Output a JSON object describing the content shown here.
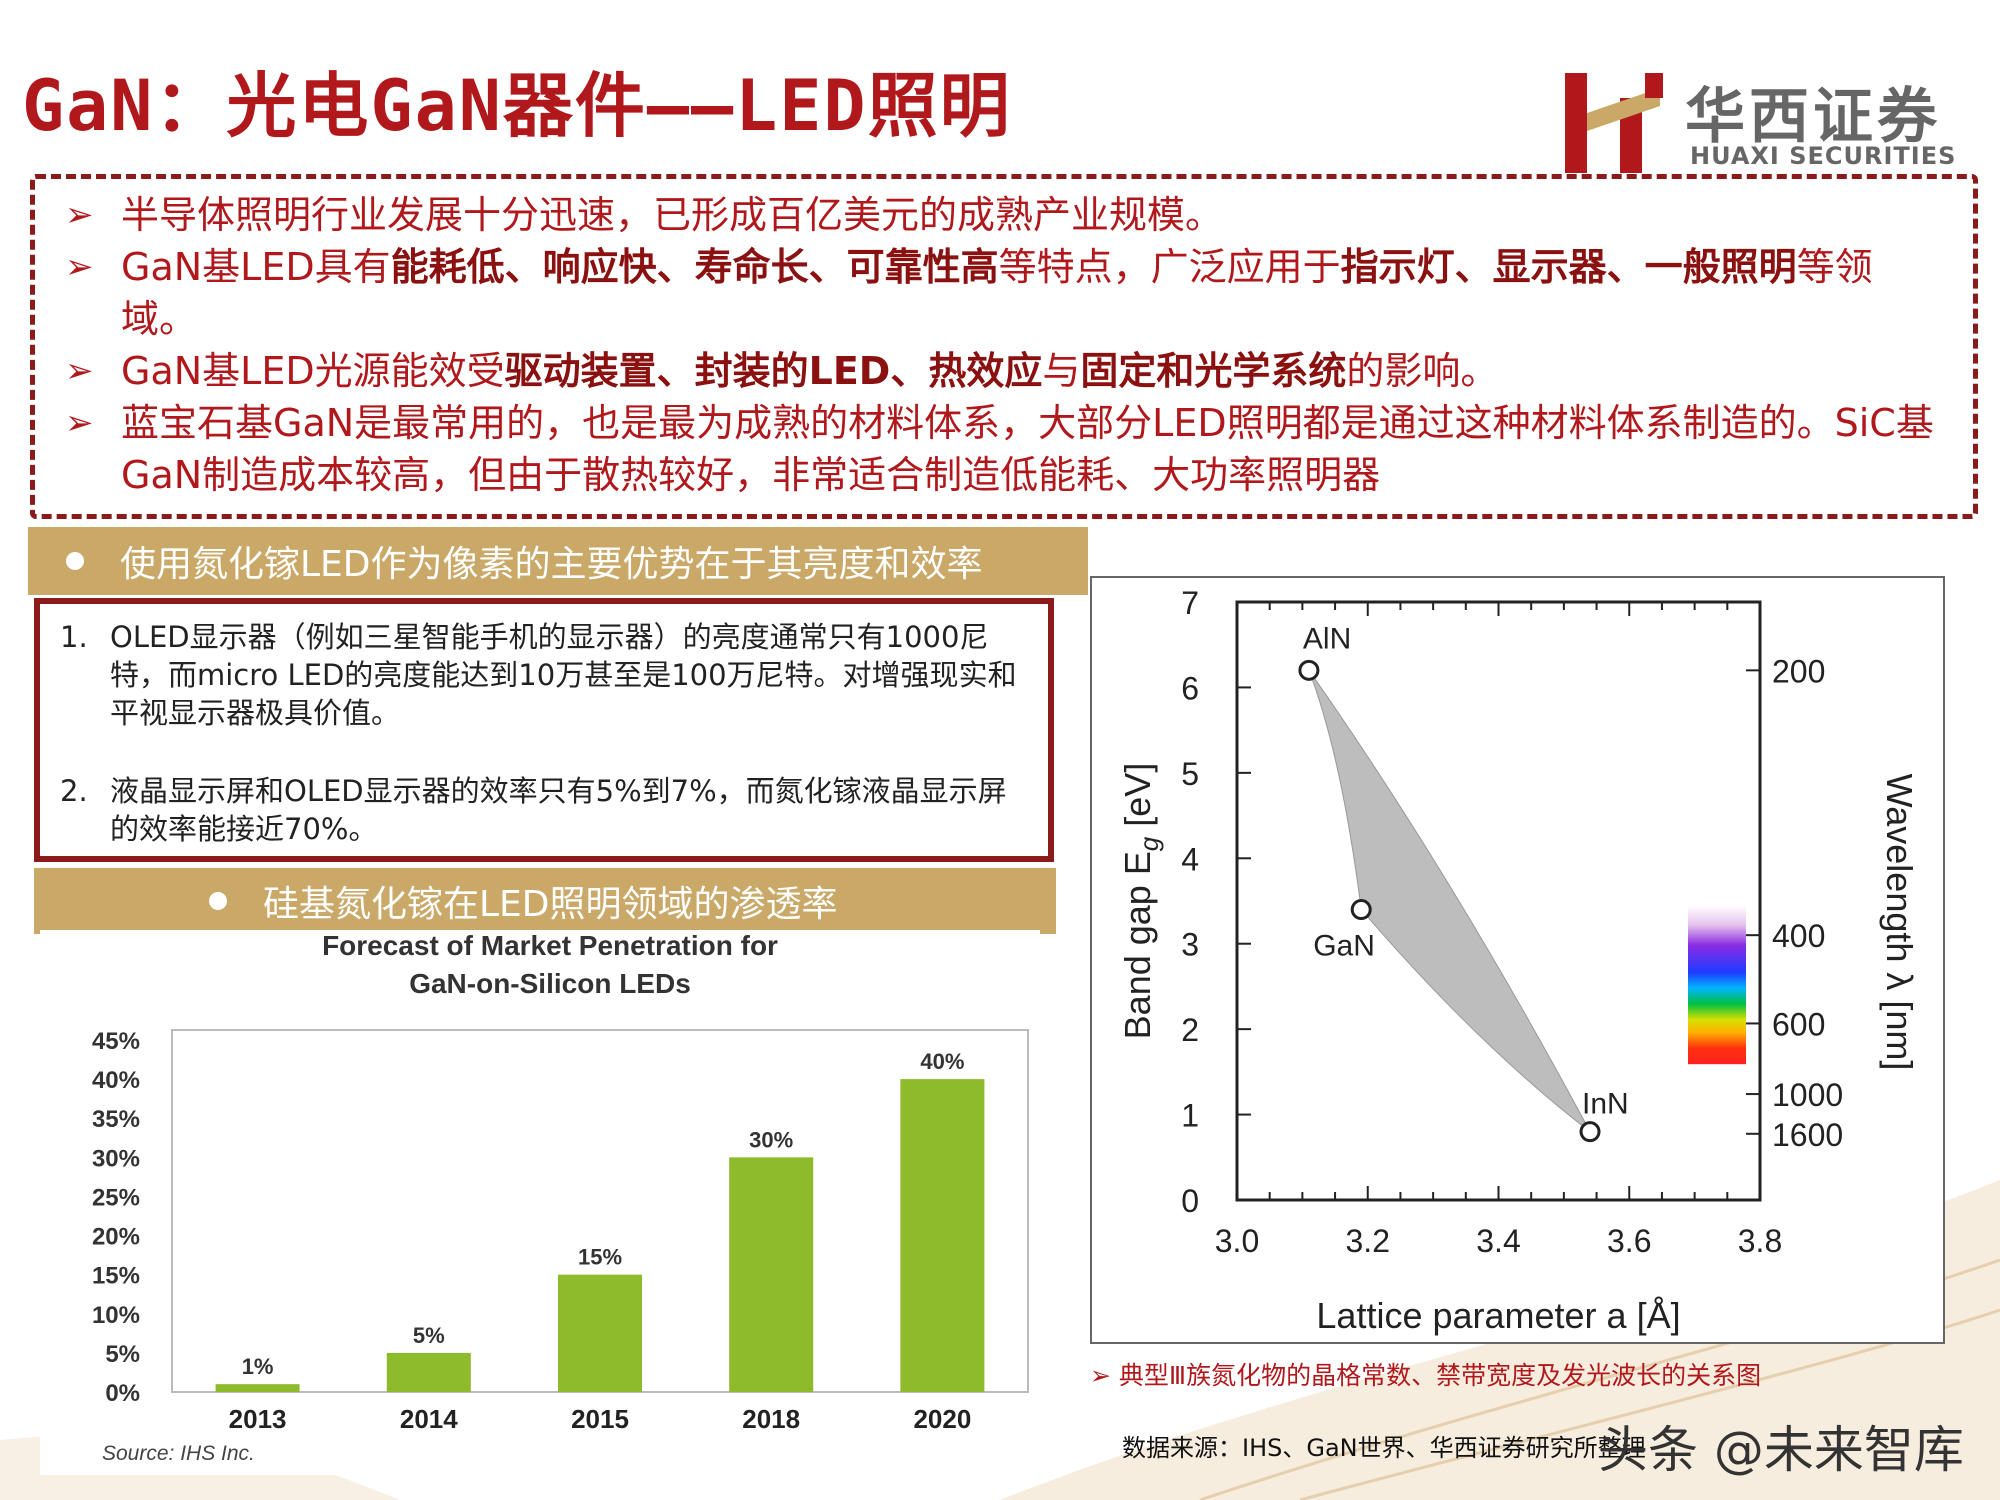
{
  "title": "GaN：光电GaN器件——LED照明",
  "logo": {
    "cn": "华西证券",
    "en": "HUAXI SECURITIES"
  },
  "colors": {
    "brand_red": "#b0181c",
    "box_border": "#8b1a1a",
    "banner_gold": "#c9a868",
    "bar_green": "#8dbb2b"
  },
  "bullets": [
    {
      "parts": [
        {
          "t": "半导体照明行业发展十分迅速，已形成百亿美元的成熟产业规模。",
          "b": false
        }
      ]
    },
    {
      "parts": [
        {
          "t": "GaN基LED具有",
          "b": false
        },
        {
          "t": "能耗低、响应快、寿命长、可靠性高",
          "b": true
        },
        {
          "t": "等特点，广泛应用于",
          "b": false
        },
        {
          "t": "指示灯、显示器、一般照明",
          "b": true
        },
        {
          "t": "等领域。",
          "b": false
        }
      ]
    },
    {
      "parts": [
        {
          "t": "GaN基LED光源能效受",
          "b": false
        },
        {
          "t": "驱动装置、封装的LED、热效应",
          "b": true
        },
        {
          "t": "与",
          "b": false
        },
        {
          "t": "固定和光学系统",
          "b": true
        },
        {
          "t": "的影响。",
          "b": false
        }
      ]
    },
    {
      "parts": [
        {
          "t": "蓝宝石基GaN是最常用的，也是最为成熟的材料体系，大部分LED照明都是通过这种材料体系制造的。SiC基GaN制造成本较高，但由于散热较好，非常适合制造低能耗、大功率照明器",
          "b": false
        }
      ]
    }
  ],
  "banner1": "使用氮化镓LED作为像素的主要优势在于其亮度和效率",
  "advantages": [
    {
      "num": "1.",
      "text": "OLED显示器（例如三星智能手机的显示器）的亮度通常只有1000尼特，而micro LED的亮度能达到10万甚至是100万尼特。对增强现实和平视显示器极具价值。"
    },
    {
      "num": "2.",
      "text": "液晶显示屏和OLED显示器的效率只有5%到7%，而氮化镓液晶显示屏的效率能接近70%。"
    }
  ],
  "banner2": "硅基氮化镓在LED照明领域的渗透率",
  "chart_data": [
    {
      "type": "bar",
      "title": "Forecast of Market Penetration for GaN-on-Silicon LEDs",
      "categories": [
        "2013",
        "2014",
        "2015",
        "2018",
        "2020"
      ],
      "values": [
        1,
        5,
        15,
        30,
        40
      ],
      "value_labels": [
        "1%",
        "5%",
        "15%",
        "30%",
        "40%"
      ],
      "ylim": [
        0,
        45
      ],
      "yticks": [
        "0%",
        "5%",
        "10%",
        "15%",
        "20%",
        "25%",
        "30%",
        "35%",
        "40%",
        "45%"
      ],
      "grid": false,
      "source": "Source: IHS Inc."
    },
    {
      "type": "scatter",
      "xlabel": "Lattice parameter a [Å]",
      "ylabel": "Band gap E",
      "ylabel_sub": "g",
      "ylabel_unit": " [eV]",
      "y2label": "Wavelength λ [nm]",
      "xlim": [
        3.0,
        3.8
      ],
      "ylim": [
        0,
        7
      ],
      "xticks": [
        "3.0",
        "3.2",
        "3.4",
        "3.6",
        "3.8"
      ],
      "yticks": [
        "0",
        "1",
        "2",
        "3",
        "4",
        "5",
        "6",
        "7"
      ],
      "y2ticks": [
        "200",
        "400",
        "600",
        "1000",
        "1600"
      ],
      "y2tick_values": [
        200,
        400,
        600,
        1000,
        1600
      ],
      "points": [
        {
          "name": "AlN",
          "x": 3.11,
          "y": 6.2
        },
        {
          "name": "GaN",
          "x": 3.19,
          "y": 3.4
        },
        {
          "name": "InN",
          "x": 3.54,
          "y": 0.8
        }
      ]
    }
  ],
  "caption": "典型Ⅲ族氮化物的晶格常数、禁带宽度及发光波长的关系图",
  "source": "数据来源：IHS、GaN世界、华西证券研究所整理",
  "watermark": "头条 @未来智库"
}
